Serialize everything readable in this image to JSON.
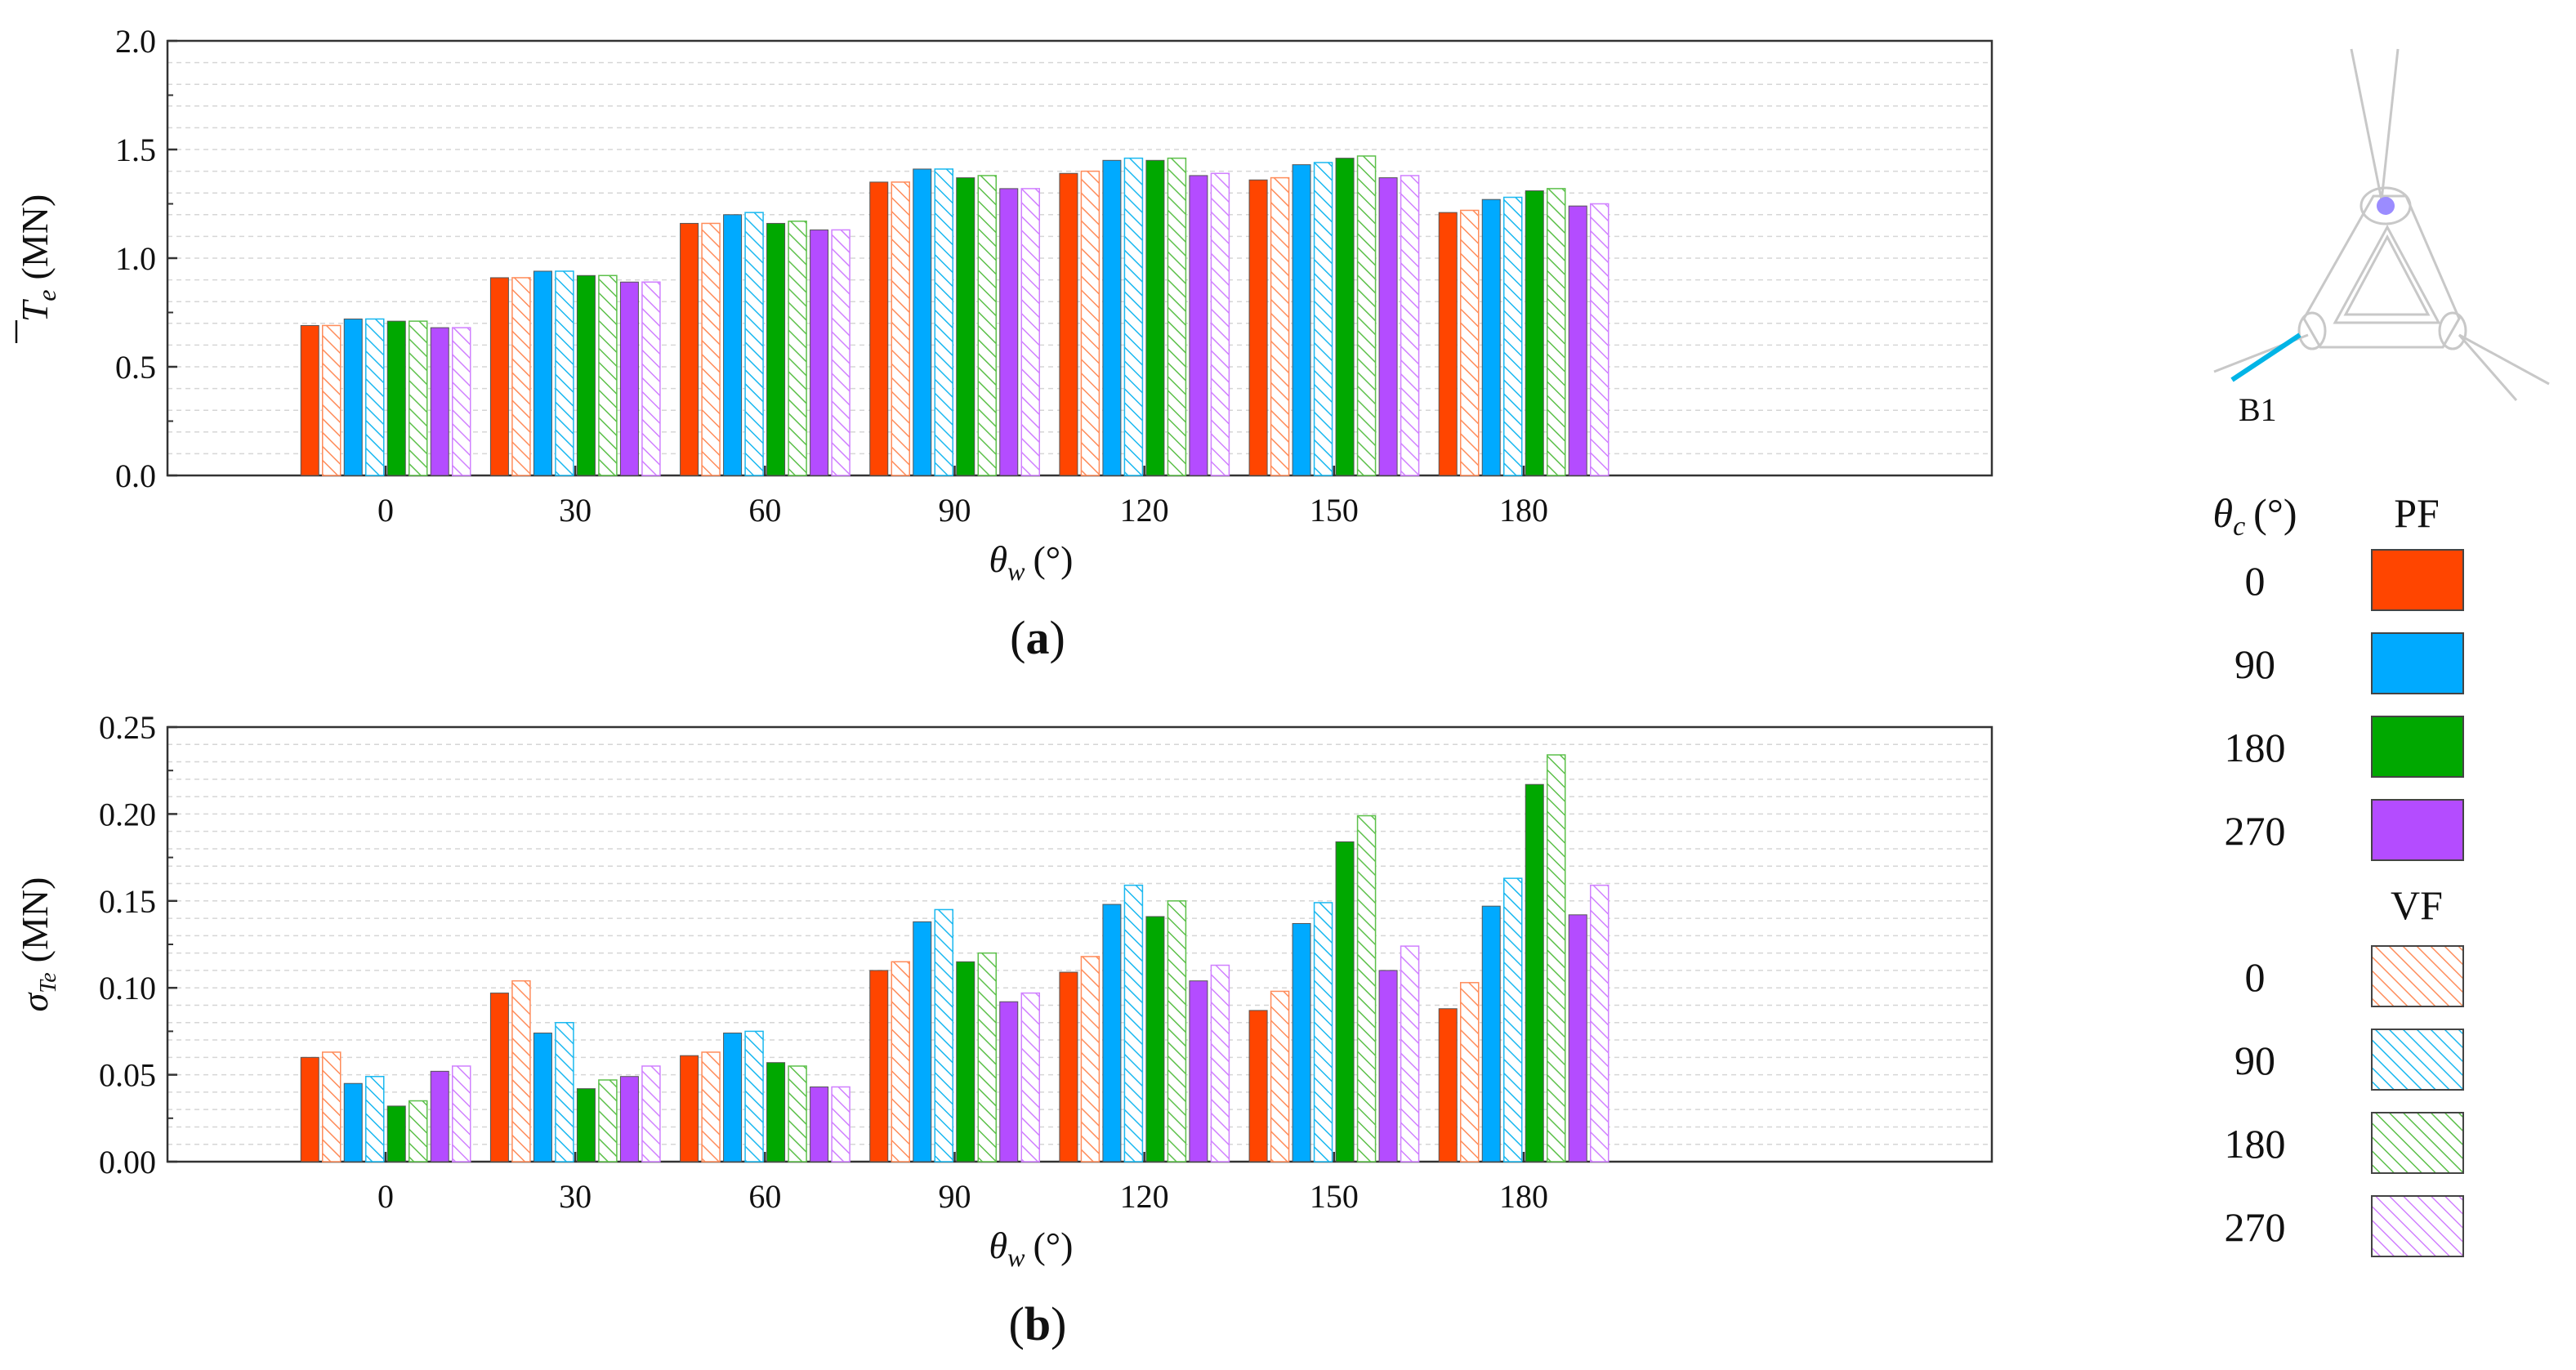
{
  "categories": [
    "0",
    "30",
    "60",
    "90",
    "120",
    "150",
    "180"
  ],
  "series_colors": {
    "PF 0": "#ff4500",
    "PF 90": "#00aaff",
    "PF 180": "#00a800",
    "PF 270": "#b44cff",
    "VF 0": "#ff8c5a",
    "VF 90": "#1ab8f0",
    "VF 180": "#5cc04a",
    "VF 270": "#d080ff"
  },
  "chart_data": [
    {
      "type": "bar",
      "title": "(a)",
      "panel_label": "a",
      "ylabel_symbol": "T",
      "ylabel_sub": "e",
      "ylabel_unit": "(MN)",
      "xlabel_symbol": "θ",
      "xlabel_sub": "w",
      "xlabel_unit": "(°)",
      "ylim": [
        0,
        2.0
      ],
      "yticks": [
        "0.0",
        "0.5",
        "1.0",
        "1.5",
        "2.0"
      ],
      "ytick_values": [
        0,
        0.5,
        1.0,
        1.5,
        2.0
      ],
      "minor_step": 0.1,
      "categories": [
        "0",
        "30",
        "60",
        "90",
        "120",
        "150",
        "180"
      ],
      "series": [
        {
          "name": "PF 0",
          "values": [
            0.69,
            0.91,
            1.16,
            1.35,
            1.39,
            1.36,
            1.21
          ]
        },
        {
          "name": "VF 0",
          "values": [
            0.69,
            0.91,
            1.16,
            1.35,
            1.4,
            1.37,
            1.22
          ]
        },
        {
          "name": "PF 90",
          "values": [
            0.72,
            0.94,
            1.2,
            1.41,
            1.45,
            1.43,
            1.27
          ]
        },
        {
          "name": "VF 90",
          "values": [
            0.72,
            0.94,
            1.21,
            1.41,
            1.46,
            1.44,
            1.28
          ]
        },
        {
          "name": "PF 180",
          "values": [
            0.71,
            0.92,
            1.16,
            1.37,
            1.45,
            1.46,
            1.31
          ]
        },
        {
          "name": "VF 180",
          "values": [
            0.71,
            0.92,
            1.17,
            1.38,
            1.46,
            1.47,
            1.32
          ]
        },
        {
          "name": "PF 270",
          "values": [
            0.68,
            0.89,
            1.13,
            1.32,
            1.38,
            1.37,
            1.24
          ]
        },
        {
          "name": "VF 270",
          "values": [
            0.68,
            0.89,
            1.13,
            1.32,
            1.39,
            1.38,
            1.25
          ]
        }
      ]
    },
    {
      "type": "bar",
      "title": "(b)",
      "panel_label": "b",
      "ylabel_symbol": "σ",
      "ylabel_sub": "Te",
      "ylabel_unit": "(MN)",
      "xlabel_symbol": "θ",
      "xlabel_sub": "w",
      "xlabel_unit": "(°)",
      "ylim": [
        0,
        0.25
      ],
      "yticks": [
        "0.00",
        "0.05",
        "0.10",
        "0.15",
        "0.20",
        "0.25"
      ],
      "ytick_values": [
        0,
        0.05,
        0.1,
        0.15,
        0.2,
        0.25
      ],
      "minor_step": 0.01,
      "categories": [
        "0",
        "30",
        "60",
        "90",
        "120",
        "150",
        "180"
      ],
      "series": [
        {
          "name": "PF 0",
          "values": [
            0.06,
            0.097,
            0.061,
            0.11,
            0.109,
            0.087,
            0.088
          ]
        },
        {
          "name": "VF 0",
          "values": [
            0.063,
            0.104,
            0.063,
            0.115,
            0.118,
            0.098,
            0.103
          ]
        },
        {
          "name": "PF 90",
          "values": [
            0.045,
            0.074,
            0.074,
            0.138,
            0.148,
            0.137,
            0.147
          ]
        },
        {
          "name": "VF 90",
          "values": [
            0.049,
            0.08,
            0.075,
            0.145,
            0.159,
            0.149,
            0.163
          ]
        },
        {
          "name": "PF 180",
          "values": [
            0.032,
            0.042,
            0.057,
            0.115,
            0.141,
            0.184,
            0.217
          ]
        },
        {
          "name": "VF 180",
          "values": [
            0.035,
            0.047,
            0.055,
            0.12,
            0.15,
            0.199,
            0.234
          ]
        },
        {
          "name": "PF 270",
          "values": [
            0.052,
            0.049,
            0.043,
            0.092,
            0.104,
            0.11,
            0.142
          ]
        },
        {
          "name": "VF 270",
          "values": [
            0.055,
            0.055,
            0.043,
            0.097,
            0.113,
            0.124,
            0.159
          ]
        }
      ]
    }
  ],
  "legend": {
    "header_symbol": "θ",
    "header_sub": "c",
    "header_unit": "(°)",
    "pf_label": "PF",
    "vf_label": "VF",
    "pf_items": [
      "0",
      "90",
      "180",
      "270"
    ],
    "vf_items": [
      "0",
      "90",
      "180",
      "270"
    ]
  },
  "diagram": {
    "label": "B1",
    "highlight_color": "#00b4e6"
  }
}
